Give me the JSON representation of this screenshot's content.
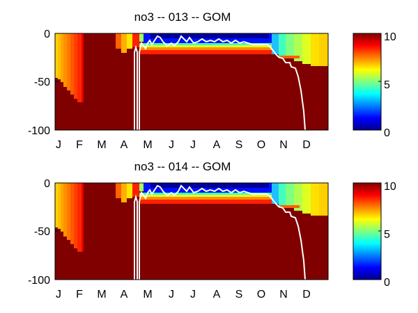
{
  "chart_data": [
    {
      "type": "heatmap",
      "title": "no3 -- 013 -- GOM",
      "xlabel": "",
      "ylabel": "",
      "x_tick_labels": [
        "J",
        "F",
        "M",
        "A",
        "M",
        "J",
        "J",
        "A",
        "S",
        "O",
        "N",
        "D"
      ],
      "y_ticks": [
        0,
        -50,
        -100
      ],
      "ylim": [
        -100,
        0
      ],
      "colorbar": {
        "ticks": [
          0,
          5,
          10
        ],
        "range": [
          0,
          10
        ],
        "colormap": "jet"
      }
    },
    {
      "type": "heatmap",
      "title": "no3 -- 014 -- GOM",
      "xlabel": "",
      "ylabel": "",
      "x_tick_labels": [
        "J",
        "F",
        "M",
        "A",
        "M",
        "J",
        "J",
        "A",
        "S",
        "O",
        "N",
        "D"
      ],
      "y_ticks": [
        0,
        -50,
        -100
      ],
      "ylim": [
        -100,
        0
      ],
      "colorbar": {
        "ticks": [
          0,
          5,
          10
        ],
        "range": [
          0,
          10
        ],
        "colormap": "jet"
      }
    }
  ]
}
